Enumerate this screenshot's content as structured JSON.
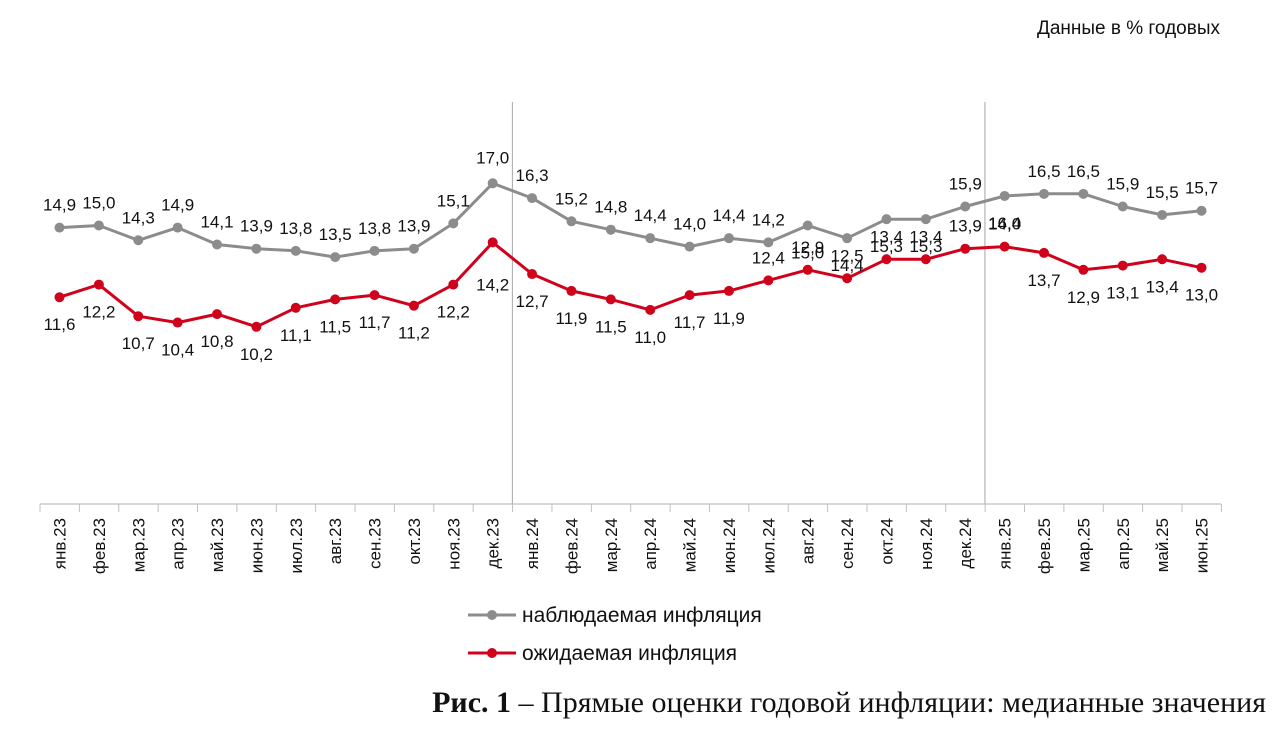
{
  "units_note": "Данные в % годовых",
  "caption": {
    "prefix": "Рис. 1",
    "text": " – Прямые оценки годовой инфляции: медианные значения"
  },
  "chart_data": {
    "type": "line",
    "categories": [
      "янв.23",
      "фев.23",
      "мар.23",
      "апр.23",
      "май.23",
      "июн.23",
      "июл.23",
      "авг.23",
      "сен.23",
      "окт.23",
      "ноя.23",
      "дек.23",
      "янв.24",
      "фев.24",
      "мар.24",
      "апр.24",
      "май.24",
      "июн.24",
      "июл.24",
      "авг.24",
      "сен.24",
      "окт.24",
      "ноя.24",
      "дек.24",
      "янв.25",
      "фев.25",
      "мар.25",
      "апр.25",
      "май.25",
      "июн.25"
    ],
    "series": [
      {
        "name": "наблюдаемая инфляция",
        "color": "#8c8c8c",
        "values": [
          14.9,
          15.0,
          14.3,
          14.9,
          14.1,
          13.9,
          13.8,
          13.5,
          13.8,
          13.9,
          15.1,
          17.0,
          16.3,
          15.2,
          14.8,
          14.4,
          14.0,
          14.4,
          14.2,
          15.0,
          14.4,
          15.3,
          15.3,
          15.9,
          16.4,
          16.5,
          16.5,
          15.9,
          15.5,
          15.7
        ],
        "labels": [
          "14,9",
          "15,0",
          "14,3",
          "14,9",
          "14,1",
          "13,9",
          "13,8",
          "13,5",
          "13,8",
          "13,9",
          "15,1",
          "17,0",
          "16,3",
          "15,2",
          "14,8",
          "14,4",
          "14,0",
          "14,4",
          "14,2",
          "15,0",
          "14,4",
          "15,3",
          "15,3",
          "15,9",
          "16,4",
          "16,5",
          "16,5",
          "15,9",
          "15,5",
          "15,7"
        ]
      },
      {
        "name": "ожидаемая инфляция",
        "color": "#d0021b",
        "values": [
          11.6,
          12.2,
          10.7,
          10.4,
          10.8,
          10.2,
          11.1,
          11.5,
          11.7,
          11.2,
          12.2,
          14.2,
          12.7,
          11.9,
          11.5,
          11.0,
          11.7,
          11.9,
          12.4,
          12.9,
          12.5,
          13.4,
          13.4,
          13.9,
          14.0,
          13.7,
          12.9,
          13.1,
          13.4,
          13.0
        ],
        "labels": [
          "11,6",
          "12,2",
          "10,7",
          "10,4",
          "10,8",
          "10,2",
          "11,1",
          "11,5",
          "11,7",
          "11,2",
          "12,2",
          "14,2",
          "12,7",
          "11,9",
          "11,5",
          "11,0",
          "11,7",
          "11,9",
          "12,4",
          "12,9",
          "12,5",
          "13,4",
          "13,4",
          "13,9",
          "14,0",
          "13,7",
          "12,9",
          "13,1",
          "13,4",
          "13,0"
        ]
      }
    ],
    "year_separators_after": [
      "дек.23",
      "дек.24"
    ],
    "grid": false,
    "legend_position": "bottom"
  }
}
